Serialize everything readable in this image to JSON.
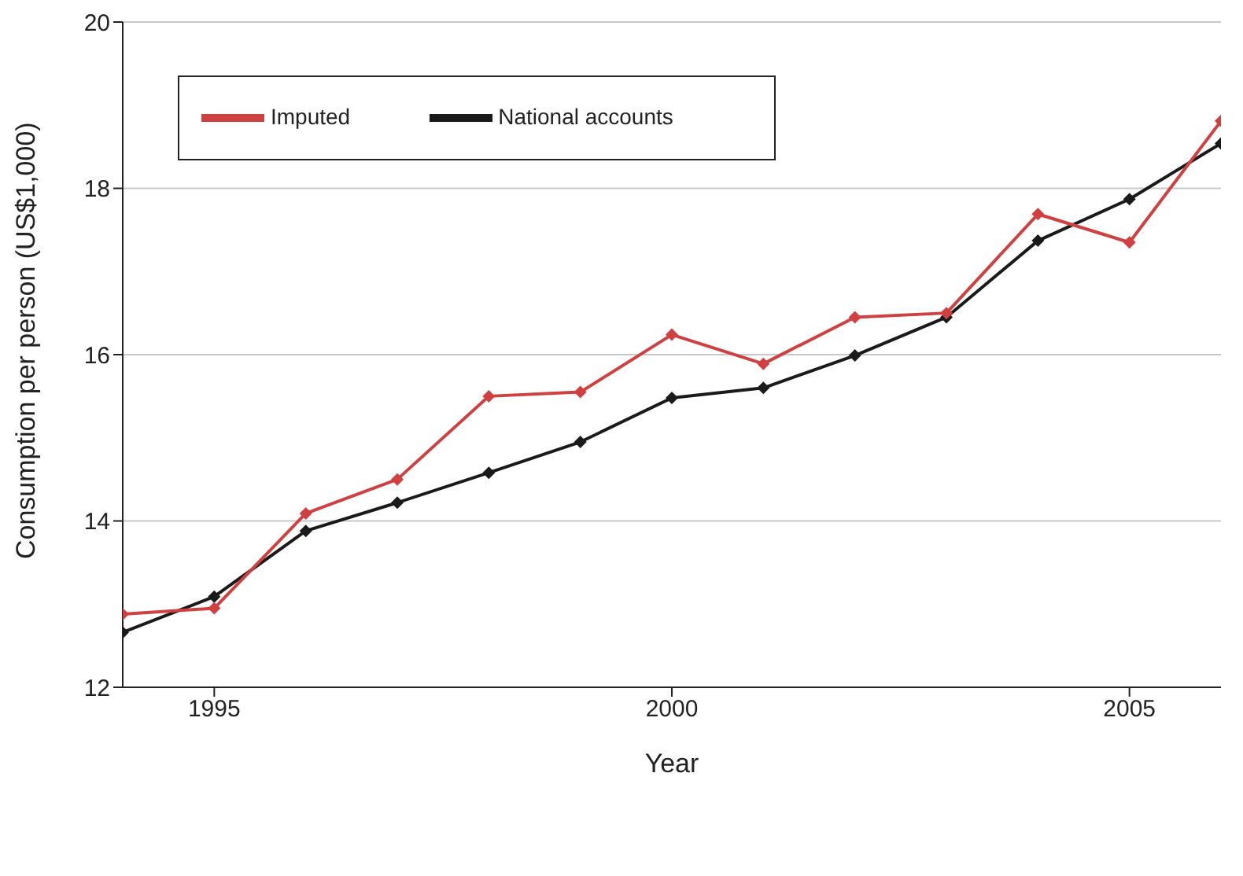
{
  "chart_data": {
    "type": "line",
    "xlabel": "Year",
    "ylabel": "Consumption per person (US$1,000)",
    "x": [
      1994,
      1995,
      1996,
      1997,
      1998,
      1999,
      2000,
      2001,
      2002,
      2003,
      2004,
      2005,
      2006
    ],
    "series": [
      {
        "name": "National accounts",
        "color": "#1a1a1a",
        "values": [
          12.66,
          13.09,
          13.88,
          14.22,
          14.58,
          14.95,
          15.48,
          15.6,
          15.99,
          16.45,
          17.37,
          17.87,
          18.54
        ]
      },
      {
        "name": "Imputed",
        "color": "#d04040",
        "values": [
          12.88,
          12.95,
          14.09,
          14.5,
          15.5,
          15.55,
          16.24,
          15.89,
          16.45,
          16.5,
          17.69,
          17.35,
          18.81
        ]
      }
    ],
    "xlim": [
      1994,
      2006
    ],
    "xticks": [
      1995,
      2000,
      2005
    ],
    "ylim": [
      12,
      20
    ],
    "yticks": [
      12,
      14,
      16,
      18,
      20
    ],
    "grid": "y",
    "legend": "top left",
    "marker": "diamond",
    "line_style": "solid"
  }
}
